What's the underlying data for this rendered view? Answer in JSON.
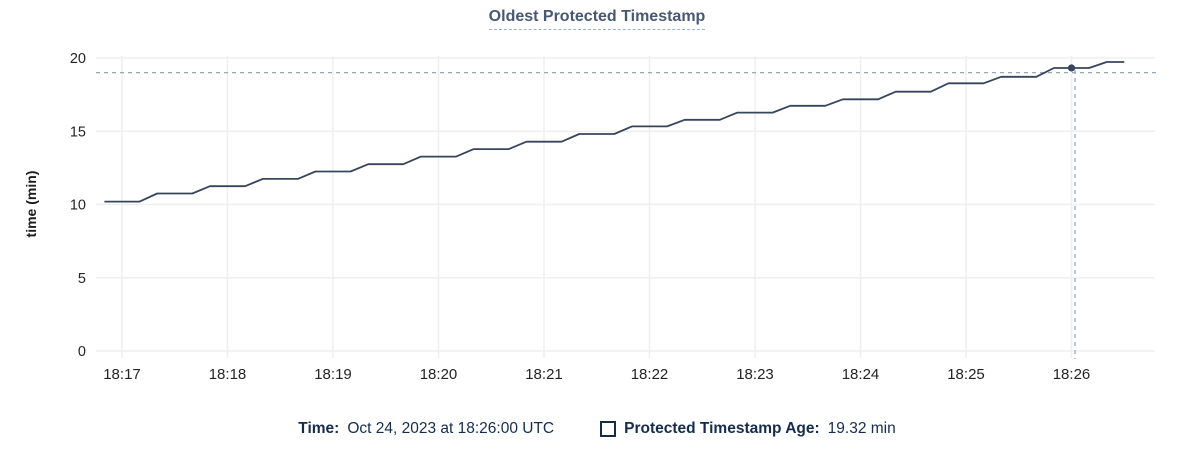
{
  "title": "Oldest Protected Timestamp",
  "legend": {
    "time_label": "Time:",
    "time_value": "Oct 24, 2023 at 18:26:00 UTC",
    "series_label": "Protected Timestamp Age:",
    "series_value": "19.32 min"
  },
  "colors": {
    "line": "#37455c",
    "grid": "#efefef",
    "crosshair": "#95aab8",
    "title": "#475872",
    "legend_text": "#152c4e",
    "tick_text": "#242424"
  },
  "chart_data": {
    "type": "line",
    "title": "Oldest Protected Timestamp",
    "xlabel": "",
    "ylabel": "time (min)",
    "ylim": [
      0,
      20
    ],
    "y_ticks": [
      0,
      5,
      10,
      15,
      20
    ],
    "x_tick_labels": [
      "18:17",
      "18:18",
      "18:19",
      "18:20",
      "18:21",
      "18:22",
      "18:23",
      "18:24",
      "18:25",
      "18:26"
    ],
    "x_tick_offsets_seconds": [
      0,
      60,
      120,
      180,
      240,
      300,
      360,
      420,
      480,
      540
    ],
    "grid": true,
    "legend_position": "bottom",
    "series": [
      {
        "name": "Protected Timestamp Age",
        "unit": "min",
        "points": [
          [
            -10,
            10.2
          ],
          [
            10,
            10.2
          ],
          [
            20,
            10.75
          ],
          [
            40,
            10.75
          ],
          [
            50,
            11.25
          ],
          [
            70,
            11.25
          ],
          [
            80,
            11.75
          ],
          [
            100,
            11.75
          ],
          [
            110,
            12.25
          ],
          [
            130,
            12.25
          ],
          [
            140,
            12.75
          ],
          [
            160,
            12.75
          ],
          [
            170,
            13.27
          ],
          [
            190,
            13.27
          ],
          [
            200,
            13.78
          ],
          [
            220,
            13.78
          ],
          [
            230,
            14.29
          ],
          [
            250,
            14.29
          ],
          [
            260,
            14.81
          ],
          [
            280,
            14.81
          ],
          [
            290,
            15.33
          ],
          [
            310,
            15.33
          ],
          [
            320,
            15.78
          ],
          [
            340,
            15.78
          ],
          [
            350,
            16.27
          ],
          [
            370,
            16.27
          ],
          [
            380,
            16.74
          ],
          [
            400,
            16.74
          ],
          [
            410,
            17.18
          ],
          [
            430,
            17.18
          ],
          [
            440,
            17.7
          ],
          [
            460,
            17.7
          ],
          [
            470,
            18.27
          ],
          [
            490,
            18.27
          ],
          [
            500,
            18.72
          ],
          [
            520,
            18.72
          ],
          [
            530,
            19.32
          ],
          [
            550,
            19.32
          ],
          [
            560,
            19.73
          ],
          [
            570,
            19.73
          ]
        ]
      }
    ],
    "hover": {
      "time_label": "Oct 24, 2023 at 18:26:00 UTC",
      "time_offset_seconds": 540,
      "value_min": 19.32,
      "crosshair_time_offset_seconds": 542,
      "crosshair_value_min": 19.0
    }
  }
}
